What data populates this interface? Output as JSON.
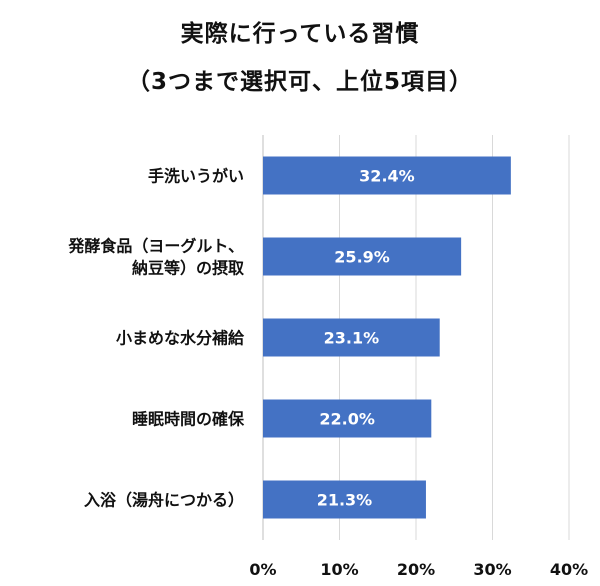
{
  "chart_data": {
    "type": "bar",
    "orientation": "horizontal",
    "title": "実際に行っている習慣",
    "subtitle": "（3つまで選択可、上位5項目）",
    "categories": [
      [
        "手洗いうがい"
      ],
      [
        "発酵食品（ヨーグルト、",
        "納豆等）の摂取"
      ],
      [
        "小まめな水分補給"
      ],
      [
        "睡眠時間の確保"
      ],
      [
        "入浴（湯舟につかる）"
      ]
    ],
    "values": [
      32.4,
      25.9,
      23.1,
      22.0,
      21.3
    ],
    "data_labels": [
      "32.4%",
      "25.9%",
      "23.1%",
      "22.0%",
      "21.3%"
    ],
    "x_ticks": [
      "0%",
      "10%",
      "20%",
      "30%",
      "40%"
    ],
    "xlim": [
      0,
      40
    ],
    "grid": true,
    "bar_color": "#4472c4",
    "grid_color": "#d9d9d9"
  }
}
